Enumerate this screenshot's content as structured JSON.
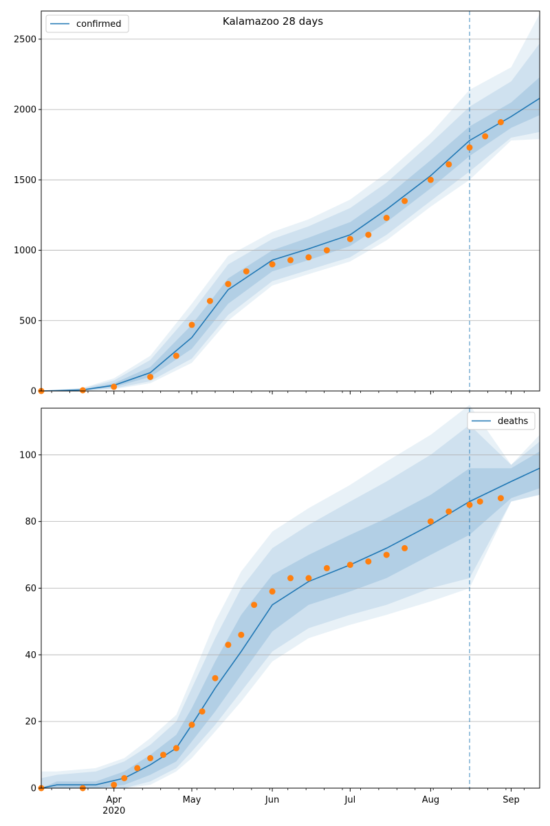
{
  "colors": {
    "model_line": "#1f77b4",
    "observed_points": "#ff7f0e",
    "band": "#1f77b4",
    "grid": "#b0b0b0",
    "cutoff_line": "#1f77b4"
  },
  "x_axis": {
    "tick_labels": [
      "Apr",
      "May",
      "Jun",
      "Jul",
      "Aug",
      "Sep"
    ],
    "year_label": "2020",
    "tick_dates": [
      "2020-04-01",
      "2020-05-01",
      "2020-06-01",
      "2020-07-01",
      "2020-08-01",
      "2020-09-01"
    ],
    "range": [
      "2020-03-04",
      "2020-09-12"
    ],
    "cutoff_date": "2020-08-16"
  },
  "chart_data": [
    {
      "type": "line",
      "title": "Kalamazoo 28 days",
      "legend": {
        "label": "confirmed",
        "placement": "top-left"
      },
      "ylim": [
        0,
        2700
      ],
      "y_ticks": [
        0,
        500,
        1000,
        1500,
        2000,
        2500
      ],
      "grid": "horizontal",
      "model": {
        "x": [
          "2020-03-04",
          "2020-03-20",
          "2020-04-01",
          "2020-04-15",
          "2020-05-01",
          "2020-05-15",
          "2020-06-01",
          "2020-06-15",
          "2020-07-01",
          "2020-07-15",
          "2020-08-01",
          "2020-08-16",
          "2020-09-01",
          "2020-09-12"
        ],
        "y": [
          0,
          8,
          40,
          130,
          380,
          720,
          930,
          1010,
          1110,
          1290,
          1530,
          1780,
          1950,
          2080
        ],
        "band_50_lower": [
          0,
          4,
          28,
          100,
          300,
          620,
          850,
          930,
          1030,
          1200,
          1440,
          1670,
          1870,
          1960
        ],
        "band_50_upper": [
          0,
          12,
          55,
          170,
          470,
          800,
          1000,
          1090,
          1200,
          1380,
          1640,
          1880,
          2050,
          2230
        ],
        "band_90_lower": [
          0,
          2,
          18,
          70,
          230,
          540,
          780,
          860,
          950,
          1110,
          1350,
          1560,
          1800,
          1840
        ],
        "band_90_upper": [
          0,
          18,
          75,
          220,
          560,
          900,
          1080,
          1170,
          1300,
          1480,
          1760,
          2020,
          2200,
          2470
        ],
        "band_95_lower": [
          0,
          1,
          12,
          55,
          200,
          500,
          750,
          830,
          920,
          1070,
          1310,
          1500,
          1780,
          1790
        ],
        "band_95_upper": [
          0,
          22,
          90,
          250,
          620,
          960,
          1130,
          1220,
          1360,
          1550,
          1830,
          2140,
          2300,
          2680
        ]
      },
      "observed": {
        "x": [
          "2020-03-04",
          "2020-03-20",
          "2020-04-01",
          "2020-04-15",
          "2020-04-25",
          "2020-05-01",
          "2020-05-08",
          "2020-05-15",
          "2020-05-22",
          "2020-06-01",
          "2020-06-08",
          "2020-06-15",
          "2020-06-22",
          "2020-07-01",
          "2020-07-08",
          "2020-07-15",
          "2020-07-22",
          "2020-08-01",
          "2020-08-08",
          "2020-08-16",
          "2020-08-22",
          "2020-08-28"
        ],
        "y": [
          0,
          5,
          30,
          100,
          250,
          470,
          640,
          760,
          850,
          900,
          930,
          950,
          1000,
          1080,
          1110,
          1230,
          1350,
          1500,
          1610,
          1730,
          1810,
          1910
        ]
      }
    },
    {
      "type": "line",
      "title": "",
      "legend": {
        "label": "deaths",
        "placement": "top-right"
      },
      "ylim": [
        0,
        114
      ],
      "y_ticks": [
        0,
        20,
        40,
        60,
        80,
        100
      ],
      "grid": "horizontal",
      "model": {
        "x": [
          "2020-03-04",
          "2020-03-10",
          "2020-03-25",
          "2020-04-05",
          "2020-04-15",
          "2020-04-25",
          "2020-05-01",
          "2020-05-10",
          "2020-05-20",
          "2020-06-01",
          "2020-06-15",
          "2020-07-01",
          "2020-07-15",
          "2020-08-01",
          "2020-08-16",
          "2020-09-01",
          "2020-09-12"
        ],
        "y": [
          0,
          1,
          1,
          3,
          7,
          12,
          19,
          30,
          41,
          55,
          62,
          67,
          72,
          79,
          86,
          92,
          96
        ],
        "band_50_lower": [
          0,
          0,
          0,
          1,
          4,
          8,
          14,
          23,
          34,
          47,
          55,
          59,
          63,
          70,
          76,
          87,
          90
        ],
        "band_50_upper": [
          0,
          2,
          2,
          5,
          10,
          16,
          24,
          38,
          52,
          64,
          70,
          76,
          81,
          88,
          96,
          96,
          101
        ],
        "band_90_lower": [
          0,
          0,
          0,
          0,
          2,
          6,
          11,
          19,
          29,
          41,
          48,
          52,
          55,
          60,
          63,
          86,
          88
        ],
        "band_90_upper": [
          3,
          4,
          5,
          8,
          13,
          20,
          30,
          45,
          60,
          72,
          79,
          86,
          92,
          100,
          109,
          97,
          104
        ],
        "band_95_lower": [
          0,
          0,
          0,
          0,
          1,
          5,
          9,
          17,
          26,
          38,
          45,
          49,
          52,
          56,
          60,
          86,
          88
        ],
        "band_95_upper": [
          5,
          5,
          6,
          9,
          15,
          22,
          33,
          50,
          65,
          77,
          84,
          91,
          98,
          106,
          115,
          97,
          106
        ]
      },
      "observed": {
        "x": [
          "2020-03-04",
          "2020-03-20",
          "2020-04-01",
          "2020-04-05",
          "2020-04-10",
          "2020-04-15",
          "2020-04-20",
          "2020-04-25",
          "2020-05-01",
          "2020-05-05",
          "2020-05-10",
          "2020-05-15",
          "2020-05-20",
          "2020-05-25",
          "2020-06-01",
          "2020-06-08",
          "2020-06-15",
          "2020-06-22",
          "2020-07-01",
          "2020-07-08",
          "2020-07-15",
          "2020-07-22",
          "2020-08-01",
          "2020-08-08",
          "2020-08-16",
          "2020-08-20",
          "2020-08-28"
        ],
        "y": [
          0,
          0,
          1,
          3,
          6,
          9,
          10,
          12,
          19,
          23,
          33,
          43,
          46,
          55,
          59,
          63,
          63,
          66,
          67,
          68,
          70,
          72,
          80,
          83,
          85,
          86,
          87
        ]
      }
    }
  ]
}
